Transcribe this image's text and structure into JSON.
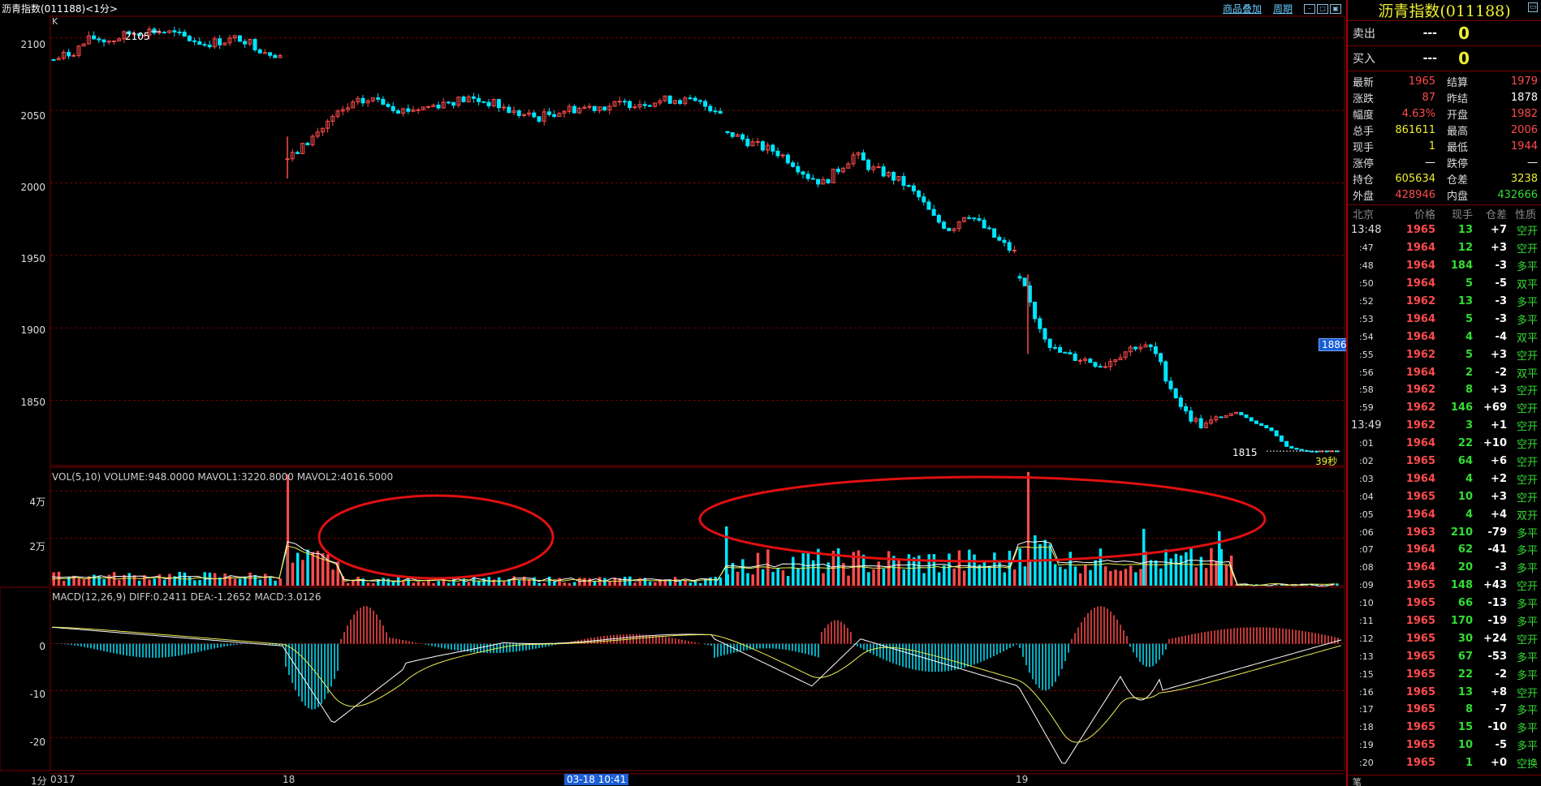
{
  "window": {
    "title": "沥青指数(011188)<1分>",
    "links": [
      "商品叠加",
      "周期"
    ]
  },
  "chart": {
    "k_label": "K",
    "period_label": "1分",
    "y_ticks": [
      "2100",
      "2050",
      "2000",
      "1950",
      "1900",
      "1850"
    ],
    "high_annot": "2105",
    "low_annot": "1815",
    "countdown": "39秒",
    "last_price_tag": "1886",
    "x_labels": [
      "0317",
      "18",
      "19"
    ],
    "x_selected": "03-18 10:41"
  },
  "volume": {
    "title": "VOL(5,10) VOLUME:948.0000 MAVOL1:3220.8000 MAVOL2:4016.5000",
    "y_ticks": [
      "4万",
      "2万"
    ]
  },
  "macd": {
    "title": "MACD(12,26,9) DIFF:0.2411 DEA:-1.2652 MACD:3.0126",
    "y_ticks": [
      "0",
      "-10",
      "-20"
    ]
  },
  "panel": {
    "title": "沥青指数(011188)",
    "sell": {
      "label": "卖出",
      "price": "---",
      "vol": "0"
    },
    "buy": {
      "label": "买入",
      "price": "---",
      "vol": "0"
    },
    "quote": [
      {
        "l1": "最新",
        "v1": "1965",
        "c1": "red",
        "l2": "结算",
        "v2": "1979",
        "c2": "red"
      },
      {
        "l1": "涨跌",
        "v1": "87",
        "c1": "red",
        "l2": "昨结",
        "v2": "1878",
        "c2": "white"
      },
      {
        "l1": "幅度",
        "v1": "4.63%",
        "c1": "red",
        "l2": "开盘",
        "v2": "1982",
        "c2": "red"
      },
      {
        "l1": "总手",
        "v1": "861611",
        "c1": "yellow",
        "l2": "最高",
        "v2": "2006",
        "c2": "red"
      },
      {
        "l1": "现手",
        "v1": "1",
        "c1": "yellow",
        "l2": "最低",
        "v2": "1944",
        "c2": "red"
      },
      {
        "l1": "涨停",
        "v1": "—",
        "c1": "white",
        "l2": "跌停",
        "v2": "—",
        "c2": "white"
      },
      {
        "l1": "持仓",
        "v1": "605634",
        "c1": "yellow",
        "l2": "仓差",
        "v2": "3238",
        "c2": "yellow"
      },
      {
        "l1": "外盘",
        "v1": "428946",
        "c1": "red",
        "l2": "内盘",
        "v2": "432666",
        "c2": "green"
      }
    ],
    "ticks_header": {
      "time": "北京",
      "price": "价格",
      "vol": "现手",
      "oi": "仓差",
      "nature": "性质"
    },
    "ticks": [
      {
        "time": "13:48",
        "price": "1965",
        "vol": "13",
        "oi": "+7",
        "nature": "空开",
        "pc": "red",
        "nc": "green"
      },
      {
        "time": ":47",
        "price": "1964",
        "vol": "12",
        "oi": "+3",
        "nature": "空开",
        "pc": "red",
        "nc": "green"
      },
      {
        "time": ":48",
        "price": "1964",
        "vol": "184",
        "oi": "-3",
        "nature": "多平",
        "pc": "red",
        "nc": "green"
      },
      {
        "time": ":50",
        "price": "1964",
        "vol": "5",
        "oi": "-5",
        "nature": "双平",
        "pc": "red",
        "nc": "green"
      },
      {
        "time": ":52",
        "price": "1962",
        "vol": "13",
        "oi": "-3",
        "nature": "多平",
        "pc": "red",
        "nc": "green"
      },
      {
        "time": ":53",
        "price": "1964",
        "vol": "5",
        "oi": "-3",
        "nature": "多平",
        "pc": "red",
        "nc": "green"
      },
      {
        "time": ":54",
        "price": "1964",
        "vol": "4",
        "oi": "-4",
        "nature": "双平",
        "pc": "red",
        "nc": "green"
      },
      {
        "time": ":55",
        "price": "1962",
        "vol": "5",
        "oi": "+3",
        "nature": "空开",
        "pc": "red",
        "nc": "green"
      },
      {
        "time": ":56",
        "price": "1964",
        "vol": "2",
        "oi": "-2",
        "nature": "双平",
        "pc": "red",
        "nc": "green"
      },
      {
        "time": ":58",
        "price": "1962",
        "vol": "8",
        "oi": "+3",
        "nature": "空开",
        "pc": "red",
        "nc": "green"
      },
      {
        "time": ":59",
        "price": "1962",
        "vol": "146",
        "oi": "+69",
        "nature": "空开",
        "pc": "red",
        "nc": "green"
      },
      {
        "time": "13:49",
        "price": "1962",
        "vol": "3",
        "oi": "+1",
        "nature": "空开",
        "pc": "red",
        "nc": "green"
      },
      {
        "time": ":01",
        "price": "1964",
        "vol": "22",
        "oi": "+10",
        "nature": "空开",
        "pc": "red",
        "nc": "green"
      },
      {
        "time": ":02",
        "price": "1965",
        "vol": "64",
        "oi": "+6",
        "nature": "空开",
        "pc": "red",
        "nc": "green"
      },
      {
        "time": ":03",
        "price": "1964",
        "vol": "4",
        "oi": "+2",
        "nature": "空开",
        "pc": "red",
        "nc": "green"
      },
      {
        "time": ":04",
        "price": "1965",
        "vol": "10",
        "oi": "+3",
        "nature": "空开",
        "pc": "red",
        "nc": "green"
      },
      {
        "time": ":05",
        "price": "1964",
        "vol": "4",
        "oi": "+4",
        "nature": "双开",
        "pc": "red",
        "nc": "green"
      },
      {
        "time": ":06",
        "price": "1963",
        "vol": "210",
        "oi": "-79",
        "nature": "多平",
        "pc": "red",
        "nc": "green"
      },
      {
        "time": ":07",
        "price": "1964",
        "vol": "62",
        "oi": "-41",
        "nature": "多平",
        "pc": "red",
        "nc": "green"
      },
      {
        "time": ":08",
        "price": "1964",
        "vol": "20",
        "oi": "-3",
        "nature": "多平",
        "pc": "red",
        "nc": "green"
      },
      {
        "time": ":09",
        "price": "1965",
        "vol": "148",
        "oi": "+43",
        "nature": "空开",
        "pc": "red",
        "nc": "green"
      },
      {
        "time": ":10",
        "price": "1965",
        "vol": "66",
        "oi": "-13",
        "nature": "多平",
        "pc": "red",
        "nc": "green"
      },
      {
        "time": ":11",
        "price": "1965",
        "vol": "170",
        "oi": "-19",
        "nature": "多平",
        "pc": "red",
        "nc": "green"
      },
      {
        "time": ":12",
        "price": "1965",
        "vol": "30",
        "oi": "+24",
        "nature": "空开",
        "pc": "red",
        "nc": "green"
      },
      {
        "time": ":13",
        "price": "1965",
        "vol": "67",
        "oi": "-53",
        "nature": "多平",
        "pc": "red",
        "nc": "green"
      },
      {
        "time": ":15",
        "price": "1965",
        "vol": "22",
        "oi": "-2",
        "nature": "多平",
        "pc": "red",
        "nc": "green"
      },
      {
        "time": ":16",
        "price": "1965",
        "vol": "13",
        "oi": "+8",
        "nature": "空开",
        "pc": "red",
        "nc": "green"
      },
      {
        "time": ":17",
        "price": "1965",
        "vol": "8",
        "oi": "-7",
        "nature": "多平",
        "pc": "red",
        "nc": "green"
      },
      {
        "time": ":18",
        "price": "1965",
        "vol": "15",
        "oi": "-10",
        "nature": "多平",
        "pc": "red",
        "nc": "green"
      },
      {
        "time": ":19",
        "price": "1965",
        "vol": "10",
        "oi": "-5",
        "nature": "多平",
        "pc": "red",
        "nc": "green"
      },
      {
        "time": ":20",
        "price": "1965",
        "vol": "1",
        "oi": "+0",
        "nature": "空换",
        "pc": "red",
        "nc": "green"
      }
    ],
    "footer_label": "笔"
  },
  "colors": {
    "up": "#ff4b4b",
    "down": "#00e5ff",
    "grid": "#7a0000",
    "ma_white": "#ffffff",
    "ma_yellow": "#eeee55",
    "annotation_ellipse": "#e01010"
  },
  "chart_data": {
    "type": "candlestick",
    "price_axis": {
      "min": 1805,
      "max": 2115,
      "ticks": [
        2100,
        2050,
        2000,
        1950,
        1900,
        1850
      ]
    },
    "segments": [
      {
        "path": [
          2085,
          2090,
          2100,
          2098,
          2103,
          2105,
          2104,
          2100,
          2096,
          2098,
          2100,
          2092,
          2088
        ]
      },
      {
        "path": [
          2015,
          2030,
          2045,
          2055,
          2058,
          2050,
          2052,
          2056,
          2058,
          2055,
          2048,
          2045,
          2050,
          2052,
          2053,
          2055,
          2056,
          2058,
          2055,
          2050
        ]
      },
      {
        "path": [
          2035,
          2030,
          2025,
          2022,
          2015,
          2005,
          2000,
          2010,
          2020,
          2010,
          2006,
          2000,
          1990,
          1975,
          1968,
          1980,
          1970,
          1960,
          1952
        ]
      },
      {
        "path": [
          1935,
          1905,
          1885,
          1880,
          1878,
          1874,
          1882,
          1888,
          1885,
          1860,
          1840,
          1832,
          1838,
          1842,
          1835,
          1830,
          1818,
          1815,
          1815,
          1815
        ]
      }
    ],
    "volume_axis": {
      "min": 0,
      "max": 50000,
      "ticks": [
        40000,
        20000
      ]
    },
    "macd_axis": {
      "min": -27,
      "max": 12,
      "ticks": [
        0,
        -10,
        -20
      ]
    },
    "annotations": [
      {
        "shape": "ellipse",
        "region": "volume-left-spike"
      },
      {
        "shape": "ellipse",
        "region": "volume-mid-cluster"
      }
    ]
  }
}
